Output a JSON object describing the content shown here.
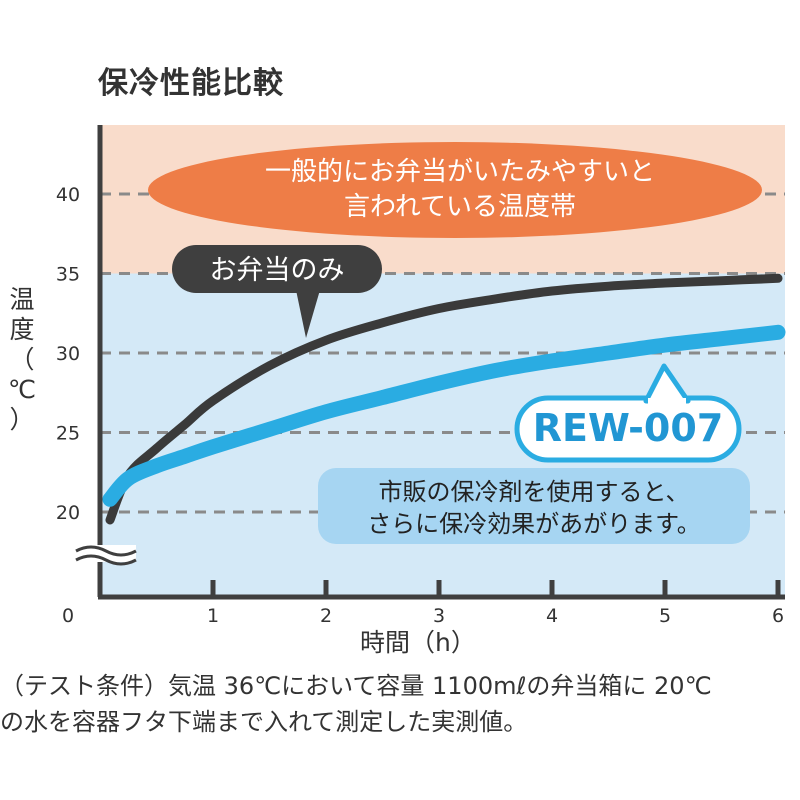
{
  "title": "保冷性能比較",
  "ylabel_chars": [
    "温",
    "度",
    "（",
    "℃",
    "）"
  ],
  "xlabel": "時間（h）",
  "bands": {
    "danger_color": "#f9dccb",
    "normal_color": "#d4e9f7",
    "danger_from": 35
  },
  "callouts": {
    "danger_zone": [
      "一般的にお弁当がいたみやすいと",
      "言われている温度帯"
    ],
    "bento_only": "お弁当のみ",
    "rew007": "REW-007",
    "comment": [
      "市販の保冷剤を使用すると、",
      "さらに保冷効果があがります。"
    ]
  },
  "colors": {
    "bento_only_line": "#3a3a3a",
    "rew007_line": "#2aace2",
    "danger_callout": "#ee7d47",
    "rew_callout_text": "#2196d3",
    "comment_bg": "#a6d5f2",
    "grid": "#8a8a8a"
  },
  "note": [
    "（テスト条件）気温 36℃において容量 1100mℓの弁当箱に 20℃",
    "の水を容器フタ下端まで入れて測定した実測値。"
  ],
  "chart_data": {
    "type": "line",
    "title": "保冷性能比較",
    "xlabel": "時間（h）",
    "ylabel": "温度（℃）",
    "xlim": [
      0,
      6
    ],
    "ylim": [
      15,
      44
    ],
    "x_ticks": [
      0,
      1,
      2,
      3,
      4,
      5,
      6
    ],
    "y_ticks": [
      20,
      25,
      30,
      35,
      40
    ],
    "grid": true,
    "axis_break": "y",
    "series": [
      {
        "name": "お弁当のみ",
        "x": [
          0.0,
          0.25,
          0.5,
          0.75,
          1.0,
          1.5,
          2.0,
          2.5,
          3.0,
          3.5,
          4.0,
          4.5,
          5.0,
          5.5,
          6.0
        ],
        "y": [
          19.5,
          22.3,
          24.0,
          25.5,
          27.0,
          29.2,
          30.8,
          31.9,
          32.8,
          33.4,
          33.9,
          34.2,
          34.4,
          34.55,
          34.7
        ]
      },
      {
        "name": "REW-007",
        "x": [
          0.0,
          0.25,
          0.5,
          0.75,
          1.0,
          1.5,
          2.0,
          2.5,
          3.0,
          3.5,
          4.0,
          4.5,
          5.0,
          5.5,
          6.0
        ],
        "y": [
          20.8,
          22.1,
          22.9,
          23.5,
          24.1,
          25.2,
          26.3,
          27.2,
          28.1,
          28.9,
          29.5,
          30.0,
          30.5,
          30.9,
          31.3
        ]
      }
    ]
  }
}
